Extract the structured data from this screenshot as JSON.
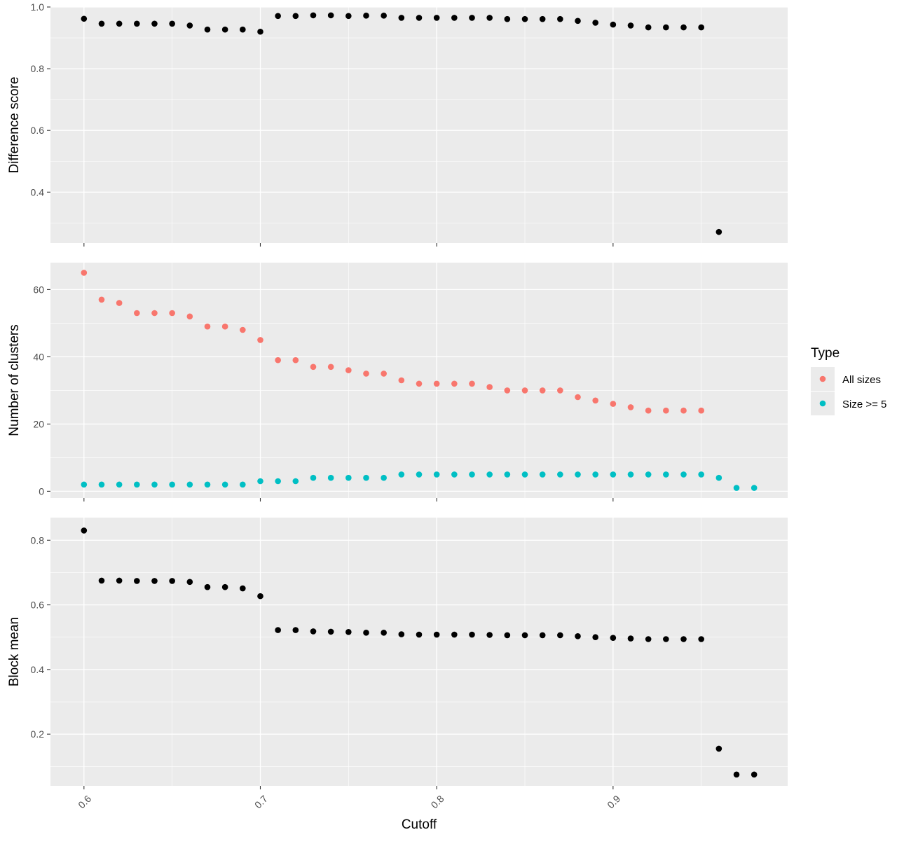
{
  "colors": {
    "panel_bg": "#EBEBEB",
    "grid_major": "#FFFFFF",
    "axis_tick": "#333333",
    "tick_text": "#4D4D4D",
    "black_points": "#000000",
    "all_sizes": "#F8766D",
    "size_ge_5": "#00BFC4"
  },
  "chart_data": [
    {
      "type": "scatter",
      "panel": "difference",
      "ylabel": "Difference score",
      "xlabel": "",
      "ylim": [
        0.235,
        1.0
      ],
      "yticks": [
        0.4,
        0.6,
        0.8,
        1.0
      ],
      "ytick_labels": [
        "0.4",
        "0.6",
        "0.8",
        "1.0"
      ],
      "xlim": [
        0.581,
        0.999
      ],
      "xticks": [
        0.6,
        0.7,
        0.8,
        0.9
      ],
      "grid": true,
      "series": [
        {
          "color_key": "black_points",
          "x": [
            0.6,
            0.61,
            0.62,
            0.63,
            0.64,
            0.65,
            0.66,
            0.67,
            0.68,
            0.69,
            0.7,
            0.71,
            0.72,
            0.73,
            0.74,
            0.75,
            0.76,
            0.77,
            0.78,
            0.79,
            0.8,
            0.81,
            0.82,
            0.83,
            0.84,
            0.85,
            0.86,
            0.87,
            0.88,
            0.89,
            0.9,
            0.91,
            0.92,
            0.93,
            0.94,
            0.95,
            0.96
          ],
          "y": [
            0.962,
            0.946,
            0.946,
            0.946,
            0.946,
            0.946,
            0.94,
            0.927,
            0.927,
            0.927,
            0.92,
            0.971,
            0.971,
            0.973,
            0.973,
            0.971,
            0.972,
            0.972,
            0.965,
            0.965,
            0.965,
            0.965,
            0.965,
            0.965,
            0.961,
            0.961,
            0.961,
            0.961,
            0.955,
            0.949,
            0.943,
            0.94,
            0.934,
            0.934,
            0.934,
            0.934,
            0.271
          ]
        }
      ]
    },
    {
      "type": "scatter",
      "panel": "clusters",
      "ylabel": "Number of clusters",
      "xlabel": "",
      "ylim": [
        -2,
        68
      ],
      "yticks": [
        0,
        20,
        40,
        60
      ],
      "ytick_labels": [
        "0",
        "20",
        "40",
        "60"
      ],
      "xlim": [
        0.581,
        0.999
      ],
      "xticks": [
        0.6,
        0.7,
        0.8,
        0.9
      ],
      "grid": true,
      "legend": {
        "title": "Type",
        "position": "right",
        "entries": [
          {
            "label": "All sizes",
            "color_key": "all_sizes"
          },
          {
            "label": "Size >= 5",
            "color_key": "size_ge_5"
          }
        ]
      },
      "series": [
        {
          "name": "All sizes",
          "color_key": "all_sizes",
          "x": [
            0.6,
            0.61,
            0.62,
            0.63,
            0.64,
            0.65,
            0.66,
            0.67,
            0.68,
            0.69,
            0.7,
            0.71,
            0.72,
            0.73,
            0.74,
            0.75,
            0.76,
            0.77,
            0.78,
            0.79,
            0.8,
            0.81,
            0.82,
            0.83,
            0.84,
            0.85,
            0.86,
            0.87,
            0.88,
            0.89,
            0.9,
            0.91,
            0.92,
            0.93,
            0.94,
            0.95
          ],
          "y": [
            65,
            57,
            56,
            53,
            53,
            53,
            52,
            49,
            49,
            48,
            45,
            39,
            39,
            37,
            37,
            36,
            35,
            35,
            33,
            32,
            32,
            32,
            32,
            31,
            30,
            30,
            30,
            30,
            28,
            27,
            26,
            25,
            24,
            24,
            24,
            24
          ]
        },
        {
          "name": "Size >= 5",
          "color_key": "size_ge_5",
          "x": [
            0.6,
            0.61,
            0.62,
            0.63,
            0.64,
            0.65,
            0.66,
            0.67,
            0.68,
            0.69,
            0.7,
            0.71,
            0.72,
            0.73,
            0.74,
            0.75,
            0.76,
            0.77,
            0.78,
            0.79,
            0.8,
            0.81,
            0.82,
            0.83,
            0.84,
            0.85,
            0.86,
            0.87,
            0.88,
            0.89,
            0.9,
            0.91,
            0.92,
            0.93,
            0.94,
            0.95,
            0.96,
            0.97,
            0.98
          ],
          "y": [
            2,
            2,
            2,
            2,
            2,
            2,
            2,
            2,
            2,
            2,
            3,
            3,
            3,
            4,
            4,
            4,
            4,
            4,
            5,
            5,
            5,
            5,
            5,
            5,
            5,
            5,
            5,
            5,
            5,
            5,
            5,
            5,
            5,
            5,
            5,
            5,
            4,
            1,
            1
          ]
        }
      ]
    },
    {
      "type": "scatter",
      "panel": "block",
      "ylabel": "Block mean",
      "xlabel": "Cutoff",
      "ylim": [
        0.04,
        0.87
      ],
      "yticks": [
        0.2,
        0.4,
        0.6,
        0.8
      ],
      "ytick_labels": [
        "0.2",
        "0.4",
        "0.6",
        "0.8"
      ],
      "xlim": [
        0.581,
        0.999
      ],
      "xticks": [
        0.6,
        0.7,
        0.8,
        0.9
      ],
      "xtick_labels": [
        "0.6",
        "0.7",
        "0.8",
        "0.9"
      ],
      "grid": true,
      "series": [
        {
          "color_key": "black_points",
          "x": [
            0.6,
            0.61,
            0.62,
            0.63,
            0.64,
            0.65,
            0.66,
            0.67,
            0.68,
            0.69,
            0.7,
            0.71,
            0.72,
            0.73,
            0.74,
            0.75,
            0.76,
            0.77,
            0.78,
            0.79,
            0.8,
            0.81,
            0.82,
            0.83,
            0.84,
            0.85,
            0.86,
            0.87,
            0.88,
            0.89,
            0.9,
            0.91,
            0.92,
            0.93,
            0.94,
            0.95,
            0.96,
            0.97,
            0.98
          ],
          "y": [
            0.83,
            0.675,
            0.675,
            0.674,
            0.674,
            0.674,
            0.671,
            0.655,
            0.655,
            0.651,
            0.627,
            0.522,
            0.522,
            0.518,
            0.517,
            0.516,
            0.514,
            0.514,
            0.509,
            0.508,
            0.508,
            0.508,
            0.508,
            0.507,
            0.506,
            0.506,
            0.506,
            0.506,
            0.503,
            0.5,
            0.498,
            0.496,
            0.494,
            0.494,
            0.494,
            0.494,
            0.155,
            0.075,
            0.075
          ]
        }
      ]
    }
  ]
}
